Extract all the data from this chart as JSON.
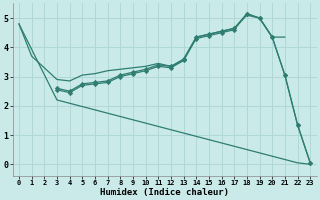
{
  "xlabel": "Humidex (Indice chaleur)",
  "xlim": [
    -0.5,
    23.5
  ],
  "ylim": [
    -0.4,
    5.5
  ],
  "xticks": [
    0,
    1,
    2,
    3,
    4,
    5,
    6,
    7,
    8,
    9,
    10,
    11,
    12,
    13,
    14,
    15,
    16,
    17,
    18,
    19,
    20,
    21,
    22,
    23
  ],
  "yticks": [
    0,
    1,
    2,
    3,
    4,
    5
  ],
  "background_color": "#caeaea",
  "grid_color": "#b0d8d8",
  "line_color": "#2e7d70",
  "series": [
    {
      "x": [
        0,
        1,
        3,
        4,
        5,
        6,
        7,
        8,
        9,
        10,
        11,
        12,
        13,
        14,
        15,
        16,
        17,
        18,
        19,
        20,
        21
      ],
      "y": [
        4.8,
        3.7,
        2.9,
        2.85,
        3.05,
        3.1,
        3.2,
        3.25,
        3.3,
        3.35,
        3.45,
        3.35,
        3.55,
        4.35,
        4.45,
        4.55,
        4.65,
        5.1,
        5.0,
        4.35,
        4.35
      ],
      "has_markers": false
    },
    {
      "x": [
        3,
        4,
        5,
        6,
        7,
        8,
        9,
        10,
        11,
        12,
        13,
        14,
        15,
        16,
        17,
        18,
        19,
        20,
        21,
        22,
        23
      ],
      "y": [
        2.6,
        2.5,
        2.75,
        2.8,
        2.85,
        3.05,
        3.15,
        3.25,
        3.4,
        3.35,
        3.6,
        4.35,
        4.45,
        4.55,
        4.65,
        5.15,
        5.0,
        4.35,
        3.05,
        1.35,
        0.05
      ],
      "has_markers": true
    },
    {
      "x": [
        3,
        4,
        5,
        6,
        7,
        8,
        9,
        10,
        11,
        12,
        13,
        14,
        15,
        16,
        17,
        18,
        19,
        20,
        21,
        22,
        23
      ],
      "y": [
        2.55,
        2.45,
        2.7,
        2.75,
        2.8,
        3.0,
        3.1,
        3.2,
        3.35,
        3.3,
        3.55,
        4.3,
        4.4,
        4.5,
        4.6,
        5.15,
        5.0,
        4.35,
        3.05,
        1.35,
        0.05
      ],
      "has_markers": true
    },
    {
      "x": [
        0,
        3,
        22,
        23
      ],
      "y": [
        4.8,
        2.2,
        0.05,
        0.0
      ],
      "has_markers": false
    }
  ]
}
